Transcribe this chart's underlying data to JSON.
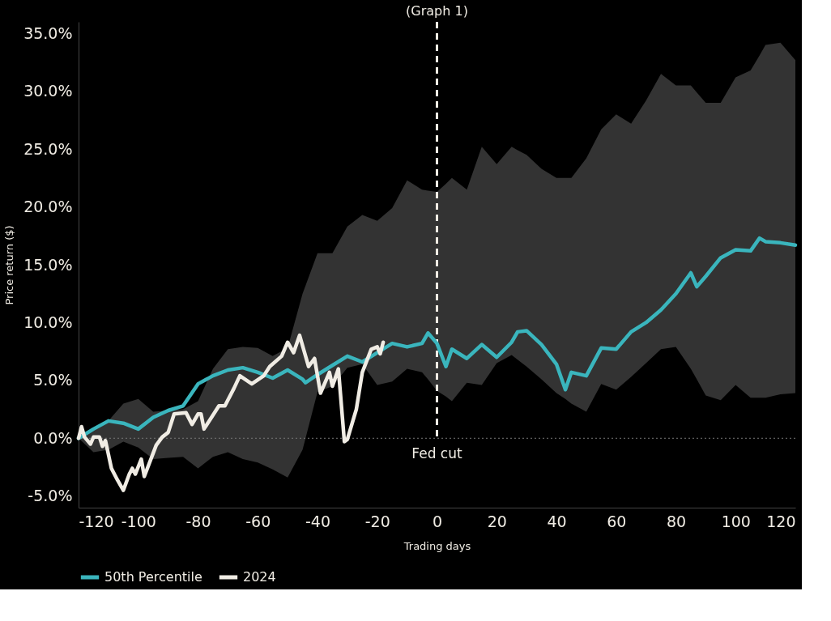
{
  "chart_data": {
    "type": "line",
    "title": "(Graph 1)",
    "xlabel": "Trading days",
    "ylabel": "Price return ($)",
    "xlim": [
      -120,
      120
    ],
    "xticks": [
      -120,
      -100,
      -80,
      -60,
      -40,
      -20,
      0,
      20,
      40,
      60,
      80,
      100,
      120
    ],
    "ylim": [
      -6,
      36
    ],
    "yticks": [
      {
        "value": -5,
        "label": "-5.0%"
      },
      {
        "value": 0,
        "label": "0.0%"
      },
      {
        "value": 5,
        "label": "5.0%"
      },
      {
        "value": 10,
        "label": "10.0%"
      },
      {
        "value": 15,
        "label": "15.0%"
      },
      {
        "value": 20,
        "label": "20.0%"
      },
      {
        "value": 25,
        "label": "25.0%"
      },
      {
        "value": 30,
        "label": "30.0%"
      },
      {
        "value": 35,
        "label": "35.0%"
      }
    ],
    "grid": false,
    "legend": "bottom",
    "line_style": "solid",
    "marker": "none",
    "ref_lines": [
      {
        "axis": "y",
        "value": 0,
        "color": "#777777",
        "line_style": "dotted"
      },
      {
        "axis": "x",
        "value": 0,
        "label": "Fed cut",
        "color": "#f0ece4",
        "line_style": "dashed"
      }
    ],
    "series": [
      {
        "name": "50th Percentile",
        "color": "#3ab5bd",
        "x": [
          -120,
          -115,
          -110,
          -105,
          -100,
          -95,
          -90,
          -85,
          -80,
          -75,
          -70,
          -65,
          -60,
          -55,
          -50,
          -45,
          -44,
          -40,
          -35,
          -30,
          -25,
          -20,
          -15,
          -10,
          -5,
          -3,
          0,
          3,
          5,
          10,
          15,
          20,
          25,
          27,
          30,
          35,
          40,
          43,
          45,
          50,
          55,
          60,
          65,
          70,
          75,
          80,
          85,
          87,
          90,
          95,
          100,
          105,
          108,
          110,
          115,
          120
        ],
        "values": [
          0,
          0.8,
          1.5,
          1.3,
          0.8,
          1.8,
          2.4,
          2.8,
          4.7,
          5.4,
          5.9,
          6.1,
          5.7,
          5.2,
          5.9,
          5.1,
          4.8,
          5.5,
          6.3,
          7.1,
          6.6,
          7.4,
          8.2,
          7.9,
          8.2,
          9.1,
          8.2,
          6.2,
          7.7,
          6.9,
          8.1,
          7.0,
          8.3,
          9.2,
          9.3,
          8.1,
          6.4,
          4.2,
          5.7,
          5.4,
          7.8,
          7.7,
          9.2,
          10.0,
          11.1,
          12.5,
          14.3,
          13.1,
          14.0,
          15.6,
          16.3,
          16.2,
          17.3,
          17.0,
          16.9,
          16.7
        ],
        "upper": [
          0,
          0.8,
          1.5,
          3.0,
          3.4,
          2.3,
          2.4,
          2.5,
          3.2,
          6.0,
          7.7,
          7.9,
          7.8,
          7.1,
          7.8,
          12.5,
          13.2,
          16.0,
          16.0,
          18.3,
          19.3,
          18.8,
          19.9,
          22.3,
          21.5,
          21.4,
          21.3,
          22.0,
          22.5,
          21.5,
          25.2,
          23.7,
          25.2,
          24.9,
          24.5,
          23.3,
          22.5,
          22.5,
          22.5,
          24.2,
          26.7,
          28.0,
          27.2,
          29.2,
          31.5,
          30.5,
          30.5,
          29.9,
          29.0,
          29.0,
          31.2,
          31.8,
          33.1,
          34.0,
          34.2,
          32.7
        ],
        "lower": [
          0,
          -1.2,
          -1.0,
          -0.3,
          -0.8,
          -1.8,
          -1.7,
          -1.6,
          -2.6,
          -1.6,
          -1.2,
          -1.8,
          -2.1,
          -2.7,
          -3.4,
          -1.0,
          0.0,
          4.0,
          4.5,
          6.1,
          6.4,
          4.6,
          4.9,
          6.0,
          5.7,
          5.1,
          4.1,
          3.6,
          3.2,
          4.8,
          4.6,
          6.5,
          7.2,
          6.8,
          6.2,
          5.1,
          3.9,
          3.4,
          3.0,
          2.3,
          4.7,
          4.2,
          5.3,
          6.5,
          7.7,
          7.9,
          6.0,
          5.1,
          3.7,
          3.3,
          4.6,
          3.5,
          3.5,
          3.5,
          3.8,
          3.9
        ]
      },
      {
        "name": "2024",
        "color": "#f0ece4",
        "x": [
          -120,
          -119,
          -118,
          -116,
          -115,
          -113,
          -112,
          -111,
          -109,
          -107,
          -105,
          -103,
          -102,
          -101,
          -99,
          -98,
          -94,
          -92,
          -90,
          -88,
          -84,
          -82,
          -80,
          -79,
          -78,
          -73,
          -71,
          -68,
          -66,
          -62,
          -58,
          -56,
          -52,
          -50,
          -48,
          -46,
          -43,
          -41,
          -39,
          -36,
          -35,
          -33,
          -31,
          -30,
          -27,
          -25,
          -22,
          -20,
          -19,
          -18
        ],
        "values": [
          0,
          1.0,
          0.1,
          -0.5,
          0.1,
          0.1,
          -0.7,
          -0.2,
          -2.6,
          -3.6,
          -4.5,
          -3.1,
          -2.6,
          -3.1,
          -1.8,
          -3.3,
          -0.6,
          0.1,
          0.5,
          2.1,
          2.2,
          1.2,
          2.1,
          2.1,
          0.8,
          2.8,
          2.8,
          4.3,
          5.4,
          4.7,
          5.4,
          6.2,
          7.1,
          8.3,
          7.4,
          8.9,
          6.2,
          6.9,
          3.9,
          5.7,
          4.5,
          6.0,
          -0.3,
          -0.1,
          2.5,
          5.7,
          7.7,
          7.9,
          7.3,
          8.3
        ]
      }
    ]
  }
}
